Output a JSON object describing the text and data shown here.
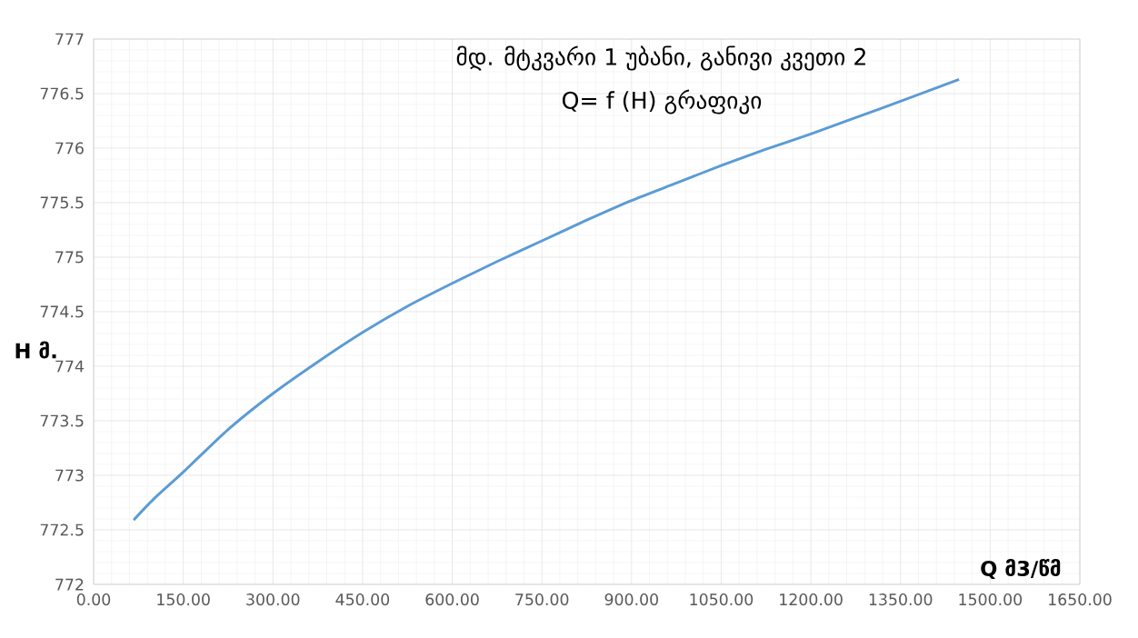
{
  "chart_data": {
    "type": "line",
    "title": "მდ. მტკვარი 1 უბანი, განივი კვეთი 2",
    "subtitle": "Q= f (H) გრაფიკი",
    "xlabel": "Q მ3/წმ",
    "ylabel": "H მ.",
    "x": [
      67,
      100,
      150,
      225,
      300,
      375,
      450,
      525,
      600,
      675,
      750,
      825,
      900,
      975,
      1050,
      1125,
      1200,
      1275,
      1350,
      1448
    ],
    "series": [
      {
        "color": "#5b9bd5",
        "values": [
          772.59,
          772.78,
          773.03,
          773.42,
          773.75,
          774.04,
          774.31,
          774.55,
          774.76,
          774.96,
          775.15,
          775.34,
          775.52,
          775.68,
          775.84,
          775.99,
          776.13,
          776.28,
          776.43,
          776.63
        ]
      }
    ],
    "xlim": [
      0,
      1650
    ],
    "ylim": [
      772,
      777
    ],
    "xticks": [
      {
        "value": 0,
        "label": "0.00"
      },
      {
        "value": 150,
        "label": "150.00"
      },
      {
        "value": 300,
        "label": "300.00"
      },
      {
        "value": 450,
        "label": "450.00"
      },
      {
        "value": 600,
        "label": "600.00"
      },
      {
        "value": 750,
        "label": "750.00"
      },
      {
        "value": 900,
        "label": "900.00"
      },
      {
        "value": 1050,
        "label": "1050.00"
      },
      {
        "value": 1200,
        "label": "1200.00"
      },
      {
        "value": 1350,
        "label": "1350.00"
      },
      {
        "value": 1500,
        "label": "1500.00"
      },
      {
        "value": 1650,
        "label": "1650.00"
      }
    ],
    "yticks": [
      772,
      772.5,
      773,
      773.5,
      774,
      774.5,
      775,
      775.5,
      776,
      776.5,
      777
    ],
    "grid": true,
    "marker": "none",
    "line_style": "solid"
  }
}
